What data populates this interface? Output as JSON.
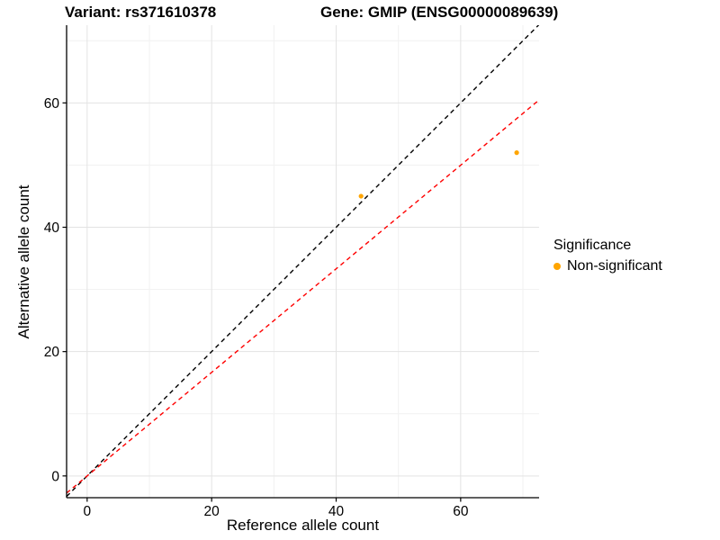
{
  "titles": {
    "variant": "Variant: rs371610378",
    "gene": "Gene: GMIP (ENSG00000089639)"
  },
  "chart_data": {
    "type": "scatter",
    "xlabel": "Reference allele count",
    "ylabel": "Alternative allele count",
    "xlim": [
      -3.3,
      72.6
    ],
    "ylim": [
      -3.5,
      72.5
    ],
    "xticks": [
      0,
      20,
      40,
      60
    ],
    "yticks": [
      0,
      20,
      40,
      60
    ],
    "xticks_minor": [
      10,
      30,
      50,
      70
    ],
    "yticks_minor": [
      10,
      30,
      50,
      70
    ],
    "grid": "major+minor",
    "points": [
      {
        "x": 44,
        "y": 45,
        "group": "Non-significant"
      },
      {
        "x": 69,
        "y": 52,
        "group": "Non-significant"
      }
    ],
    "point_color": "#FFA500",
    "lines": [
      {
        "name": "identity-line",
        "slope": 1.0,
        "intercept": 0,
        "color": "#000000",
        "style": "dashed"
      },
      {
        "name": "fit-line",
        "slope": 0.833,
        "intercept": 0,
        "color": "#FF0000",
        "style": "dashed"
      }
    ],
    "legend": {
      "position": "right",
      "title": "Significance",
      "items": [
        {
          "label": "Non-significant",
          "color": "#FFA500"
        }
      ]
    }
  }
}
